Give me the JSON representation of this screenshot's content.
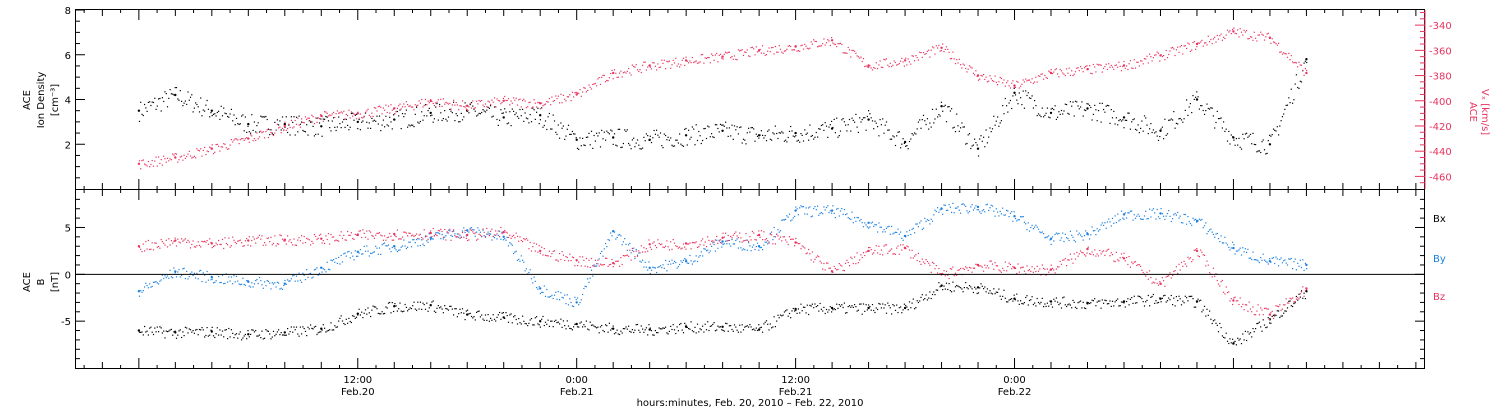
{
  "colors": {
    "black_series": "#000000",
    "pink_series": "#e8345e",
    "blue_series": "#1a7fe0",
    "frame": "#000000"
  },
  "chart_data": [
    {
      "type": "scatter",
      "panel": "top",
      "ylabel_left_lines": [
        "ACE",
        "Ion Density",
        "[cm⁻³]"
      ],
      "ylabel_right_lines": [
        "ACE",
        "Vₓ [km/s]"
      ],
      "ylim_left": [
        0,
        8
      ],
      "ylim_right": [
        -470,
        -328
      ],
      "y_ticks_left": [
        "2",
        "4",
        "6",
        "8"
      ],
      "y_ticks_right": [
        "-340",
        "-360",
        "-380",
        "-400",
        "-420",
        "-440",
        "-460"
      ],
      "series": [
        {
          "axis": "left",
          "color": "#000000",
          "x_hours": [
            0,
            2,
            4,
            6,
            8,
            10,
            12,
            14,
            16,
            18,
            20,
            22,
            24,
            26,
            28,
            30,
            32,
            34,
            36,
            38,
            40,
            42,
            44,
            46,
            48,
            50,
            52,
            54,
            56,
            58,
            60,
            62,
            64
          ],
          "values": [
            3.5,
            4.2,
            3.5,
            2.9,
            2.9,
            2.8,
            3.0,
            3.1,
            3.4,
            3.5,
            3.2,
            3.3,
            2.2,
            2.3,
            2.2,
            2.4,
            2.6,
            2.4,
            2.5,
            2.7,
            3.1,
            2.1,
            3.7,
            1.8,
            4.3,
            3.4,
            3.6,
            3.2,
            2.6,
            4.0,
            2.3,
            2.0,
            5.8
          ]
        },
        {
          "axis": "right",
          "color": "#e8345e",
          "x_hours": [
            0,
            2,
            4,
            6,
            8,
            10,
            12,
            14,
            16,
            18,
            20,
            22,
            24,
            26,
            28,
            30,
            32,
            34,
            36,
            38,
            40,
            42,
            44,
            46,
            48,
            50,
            52,
            54,
            56,
            58,
            60,
            62,
            64
          ],
          "values": [
            -450,
            -445,
            -438,
            -430,
            -420,
            -412,
            -410,
            -406,
            -400,
            -404,
            -400,
            -402,
            -395,
            -378,
            -372,
            -368,
            -365,
            -360,
            -357,
            -352,
            -372,
            -368,
            -358,
            -380,
            -388,
            -378,
            -375,
            -372,
            -364,
            -355,
            -345,
            -350,
            -378
          ]
        }
      ]
    },
    {
      "type": "scatter",
      "panel": "bottom",
      "ylabel_left_lines": [
        "ACE",
        "B",
        "[nT]"
      ],
      "ylim": [
        -10,
        9
      ],
      "y_ticks": [
        "-5",
        "0",
        "5"
      ],
      "zero_line": true,
      "legend": [
        "Bx",
        "By",
        "Bz"
      ],
      "legend_placement": "right",
      "series": [
        {
          "name": "Bx",
          "color": "#000000",
          "x_hours": [
            0,
            2,
            4,
            6,
            8,
            10,
            12,
            14,
            16,
            18,
            20,
            22,
            24,
            26,
            28,
            30,
            32,
            34,
            36,
            38,
            40,
            42,
            44,
            46,
            48,
            50,
            52,
            54,
            56,
            58,
            60,
            62,
            64
          ],
          "values": [
            -6.0,
            -6.2,
            -6.1,
            -6.4,
            -6.2,
            -5.8,
            -4.2,
            -3.4,
            -3.3,
            -4.3,
            -4.6,
            -5.0,
            -5.3,
            -5.8,
            -5.9,
            -5.6,
            -5.6,
            -5.9,
            -3.7,
            -3.6,
            -3.6,
            -3.6,
            -1.2,
            -1.4,
            -2.6,
            -2.9,
            -3.1,
            -2.9,
            -2.6,
            -2.9,
            -7.4,
            -4.8,
            -1.8
          ]
        },
        {
          "name": "By",
          "color": "#1a7fe0",
          "x_hours": [
            0,
            2,
            4,
            6,
            8,
            10,
            12,
            14,
            16,
            18,
            20,
            22,
            24,
            26,
            28,
            30,
            32,
            34,
            36,
            38,
            40,
            42,
            44,
            46,
            48,
            50,
            52,
            54,
            56,
            58,
            60,
            62,
            64
          ],
          "values": [
            -1.8,
            0.3,
            -0.3,
            -0.8,
            -1.0,
            0.7,
            2.4,
            3.0,
            3.9,
            4.7,
            4.0,
            -1.5,
            -3.0,
            4.6,
            0.7,
            1.4,
            3.5,
            3.0,
            6.8,
            6.8,
            5.5,
            4.1,
            7.0,
            7.2,
            6.2,
            3.8,
            4.3,
            6.4,
            6.5,
            5.7,
            2.8,
            1.4,
            1.0
          ]
        },
        {
          "name": "Bz",
          "color": "#e8345e",
          "x_hours": [
            0,
            2,
            4,
            6,
            8,
            10,
            12,
            14,
            16,
            18,
            20,
            22,
            24,
            26,
            28,
            30,
            32,
            34,
            36,
            38,
            40,
            42,
            44,
            46,
            48,
            50,
            52,
            54,
            56,
            58,
            60,
            62,
            64
          ],
          "values": [
            3.0,
            3.6,
            3.3,
            3.6,
            3.7,
            3.8,
            4.2,
            4.3,
            4.4,
            4.2,
            4.5,
            2.5,
            1.5,
            1.2,
            3.2,
            3.3,
            3.9,
            4.2,
            3.4,
            0.3,
            2.5,
            2.8,
            0.0,
            1.0,
            0.7,
            0.5,
            2.7,
            1.7,
            -1.0,
            2.5,
            -2.8,
            -4.3,
            -1.5
          ]
        }
      ]
    }
  ],
  "x_axis": {
    "xlim_hours": [
      -3.5,
      70.5
    ],
    "major_ticks": [
      {
        "hour": 12,
        "time": "12:00",
        "date": "Feb.20"
      },
      {
        "hour": 24,
        "time": "0:00",
        "date": "Feb.21"
      },
      {
        "hour": 36,
        "time": "12:00",
        "date": "Feb.21"
      },
      {
        "hour": 48,
        "time": "0:00",
        "date": "Feb.22"
      }
    ],
    "xlabel": "hours:minutes, Feb. 20, 2010 – Feb. 22, 2010"
  }
}
